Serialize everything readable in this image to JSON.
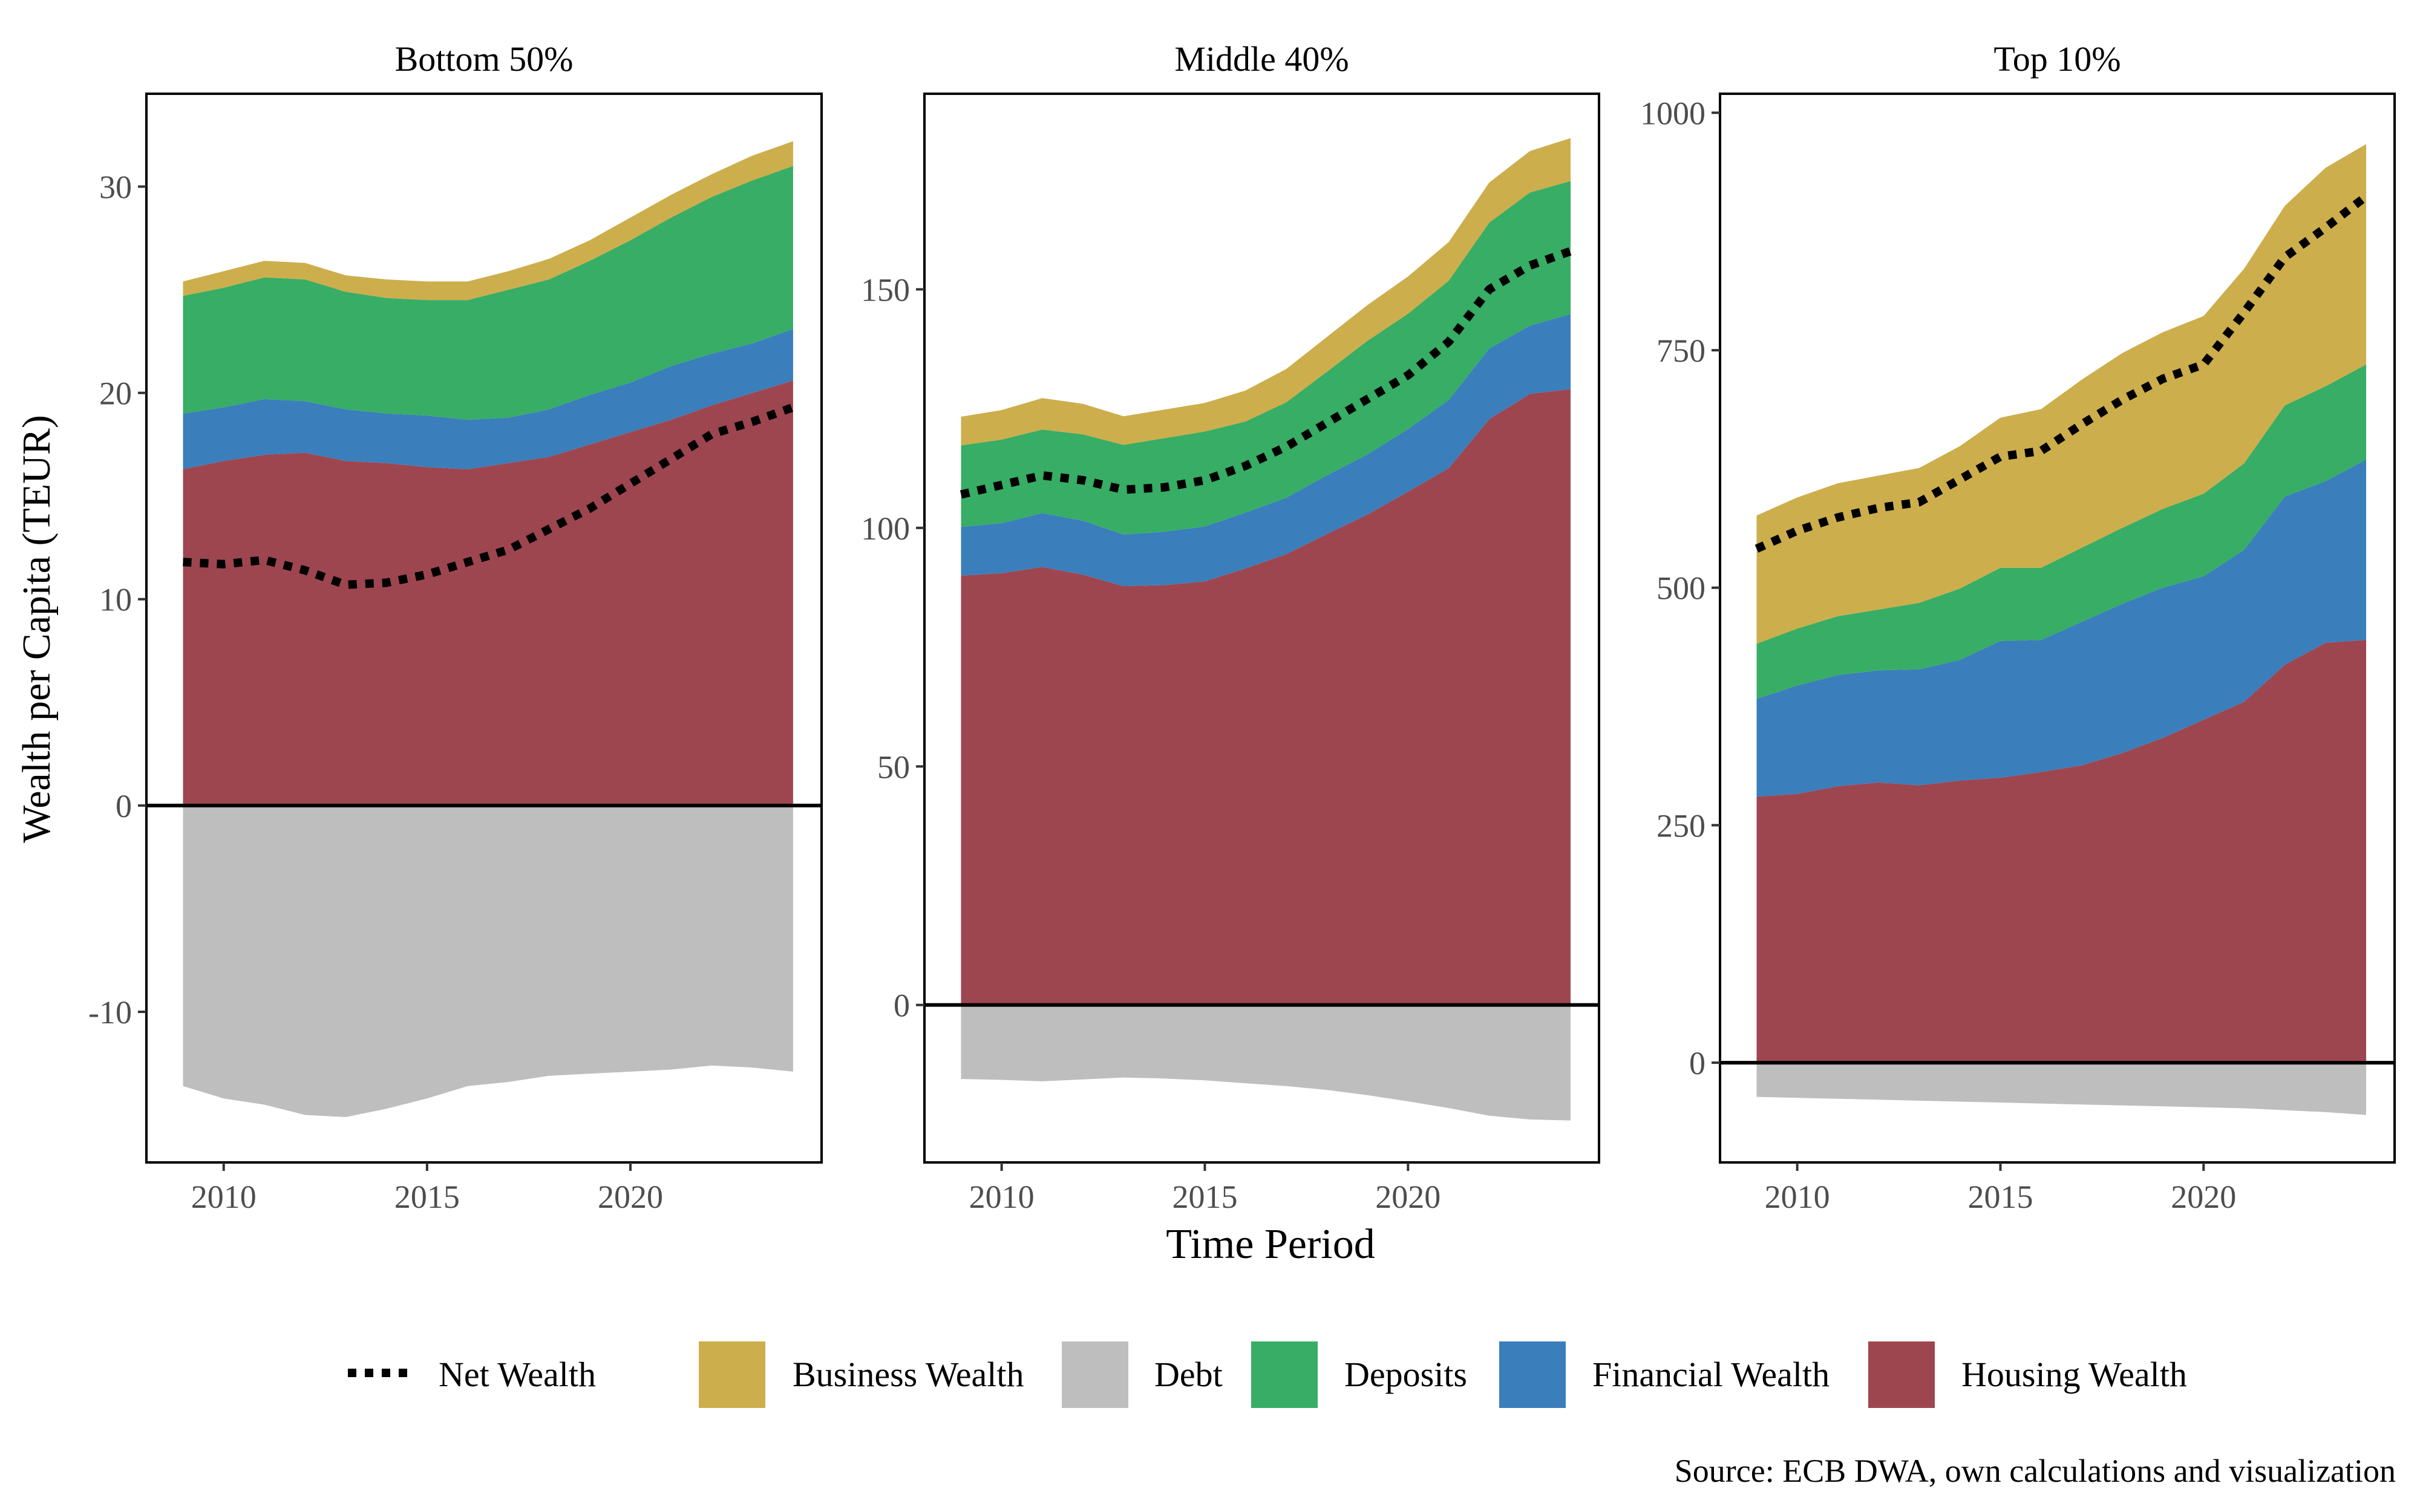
{
  "figure": {
    "ylabel": "Wealth per Capita (TEUR)",
    "xlabel": "Time Period",
    "source": "Source: ECB DWA, own calculations and visualization"
  },
  "colors": {
    "business": "#CDAE4C",
    "debt": "#BEBEBE",
    "deposits": "#37AD66",
    "financial": "#3A7EBB",
    "housing": "#9E4650",
    "net": "#000000"
  },
  "legend": [
    {
      "key": "net",
      "label": "Net Wealth"
    },
    {
      "key": "business",
      "label": "Business Wealth"
    },
    {
      "key": "debt",
      "label": "Debt"
    },
    {
      "key": "deposits",
      "label": "Deposits"
    },
    {
      "key": "financial",
      "label": "Financial Wealth"
    },
    {
      "key": "housing",
      "label": "Housing Wealth"
    }
  ],
  "chart_data": [
    {
      "type": "area",
      "title": "Bottom 50%",
      "x": [
        2009,
        2010,
        2011,
        2012,
        2013,
        2014,
        2015,
        2016,
        2017,
        2018,
        2019,
        2020,
        2021,
        2022,
        2023,
        2024
      ],
      "xticks": [
        2010,
        2015,
        2020
      ],
      "xlim": [
        2008.1,
        2024.7
      ],
      "ylim": [
        -17.3,
        34.5
      ],
      "yticks": [
        -10,
        0,
        10,
        20,
        30
      ],
      "ytick_labels": [
        "-10",
        "0",
        "10",
        "20",
        "30"
      ],
      "series": [
        {
          "key": "housing",
          "name": "Housing Wealth",
          "values": [
            16.3,
            16.7,
            17.0,
            17.1,
            16.7,
            16.6,
            16.4,
            16.3,
            16.6,
            16.9,
            17.5,
            18.1,
            18.7,
            19.4,
            20.0,
            20.6
          ]
        },
        {
          "key": "financial",
          "name": "Financial Wealth",
          "values": [
            2.7,
            2.6,
            2.7,
            2.5,
            2.5,
            2.4,
            2.5,
            2.4,
            2.2,
            2.3,
            2.4,
            2.4,
            2.6,
            2.5,
            2.4,
            2.5
          ]
        },
        {
          "key": "deposits",
          "name": "Deposits",
          "values": [
            5.7,
            5.8,
            5.9,
            5.9,
            5.7,
            5.6,
            5.6,
            5.8,
            6.2,
            6.3,
            6.5,
            6.9,
            7.2,
            7.6,
            7.9,
            7.9
          ]
        },
        {
          "key": "business",
          "name": "Business Wealth",
          "values": [
            0.7,
            0.8,
            0.8,
            0.8,
            0.8,
            0.9,
            0.9,
            0.9,
            0.9,
            1.0,
            1.0,
            1.1,
            1.1,
            1.1,
            1.2,
            1.2
          ]
        },
        {
          "key": "debt",
          "name": "Debt",
          "values": [
            -13.6,
            -14.2,
            -14.5,
            -15.0,
            -15.1,
            -14.7,
            -14.2,
            -13.6,
            -13.4,
            -13.1,
            -13.0,
            -12.9,
            -12.8,
            -12.6,
            -12.7,
            -12.9
          ]
        },
        {
          "key": "net",
          "name": "Net Wealth",
          "values": [
            11.8,
            11.7,
            11.9,
            11.4,
            10.7,
            10.8,
            11.2,
            11.8,
            12.4,
            13.4,
            14.4,
            15.6,
            16.8,
            18.0,
            18.6,
            19.3
          ]
        }
      ]
    },
    {
      "type": "area",
      "title": "Middle 40%",
      "x": [
        2009,
        2010,
        2011,
        2012,
        2013,
        2014,
        2015,
        2016,
        2017,
        2018,
        2019,
        2020,
        2021,
        2022,
        2023,
        2024
      ],
      "xticks": [
        2010,
        2015,
        2020
      ],
      "xlim": [
        2008.1,
        2024.7
      ],
      "ylim": [
        -33,
        191
      ],
      "yticks": [
        0,
        50,
        100,
        150
      ],
      "ytick_labels": [
        "0",
        "50",
        "100",
        "150"
      ],
      "series": [
        {
          "key": "housing",
          "name": "Housing Wealth",
          "values": [
            90,
            90.5,
            91.8,
            90.2,
            87.8,
            88,
            88.8,
            91.5,
            94.5,
            98.7,
            102.8,
            107.6,
            112.5,
            122.8,
            128.1,
            129.1
          ]
        },
        {
          "key": "financial",
          "name": "Financial Wealth",
          "values": [
            10.2,
            10.5,
            11.3,
            11.3,
            10.8,
            11.2,
            11.5,
            11.7,
            11.8,
            12.3,
            12.6,
            13.1,
            14.3,
            14.8,
            14.3,
            15.7
          ]
        },
        {
          "key": "deposits",
          "name": "Deposits",
          "values": [
            17.1,
            17.5,
            17.5,
            18.1,
            18.8,
            19.6,
            19.9,
            19.1,
            20.0,
            21.7,
            23.8,
            24.2,
            25.0,
            26.4,
            27.9,
            27.9
          ]
        },
        {
          "key": "business",
          "name": "Business Wealth",
          "values": [
            6.0,
            6.2,
            6.6,
            6.4,
            6.0,
            6.0,
            6.0,
            6.5,
            7.0,
            7.3,
            7.5,
            7.8,
            8.1,
            8.4,
            8.7,
            9.0
          ]
        },
        {
          "key": "debt",
          "name": "Debt",
          "values": [
            -15.5,
            -15.7,
            -16.0,
            -15.6,
            -15.2,
            -15.4,
            -15.8,
            -16.4,
            -17.0,
            -17.8,
            -18.9,
            -20.2,
            -21.6,
            -23.2,
            -24.0,
            -24.2
          ]
        },
        {
          "key": "net",
          "name": "Net Wealth",
          "values": [
            107,
            109,
            111,
            110,
            108,
            108.5,
            110,
            113,
            117,
            122,
            127,
            132,
            139,
            150,
            155,
            158
          ]
        }
      ]
    },
    {
      "type": "area",
      "title": "Top 10%",
      "x": [
        2009,
        2010,
        2011,
        2012,
        2013,
        2014,
        2015,
        2016,
        2017,
        2018,
        2019,
        2020,
        2021,
        2022,
        2023,
        2024
      ],
      "xticks": [
        2010,
        2015,
        2020
      ],
      "xlim": [
        2008.1,
        2024.7
      ],
      "ylim": [
        -105,
        1020
      ],
      "yticks": [
        0,
        250,
        500,
        750,
        1000
      ],
      "ytick_labels": [
        "0",
        "250",
        "500",
        "750",
        "1000"
      ],
      "series": [
        {
          "key": "housing",
          "name": "Housing Wealth",
          "values": [
            280,
            283,
            291,
            295,
            292,
            297,
            300,
            306,
            313,
            326,
            342,
            361,
            380,
            419,
            442,
            445
          ]
        },
        {
          "key": "financial",
          "name": "Financial Wealth",
          "values": [
            103,
            114,
            117,
            118,
            122,
            127,
            144,
            139,
            151,
            157,
            158,
            151,
            160,
            177,
            170,
            190
          ]
        },
        {
          "key": "deposits",
          "name": "Deposits",
          "values": [
            58,
            60,
            62,
            64,
            70,
            75,
            77,
            76,
            78,
            80,
            83,
            87,
            91,
            96,
            100,
            100
          ]
        },
        {
          "key": "business",
          "name": "Business Wealth",
          "values": [
            135,
            138,
            140,
            141,
            142,
            150,
            158,
            167,
            177,
            184,
            186,
            187,
            205,
            210,
            230,
            232
          ]
        },
        {
          "key": "debt",
          "name": "Debt",
          "values": [
            -36,
            -37,
            -38,
            -39,
            -40,
            -41,
            -42,
            -43,
            -44,
            -45,
            -46,
            -47,
            -48,
            -50,
            -52,
            -55
          ]
        },
        {
          "key": "net",
          "name": "Net Wealth",
          "values": [
            541,
            560,
            574,
            584,
            590,
            614,
            638,
            644,
            672,
            698,
            720,
            735,
            790,
            848,
            879,
            912
          ]
        }
      ]
    }
  ]
}
